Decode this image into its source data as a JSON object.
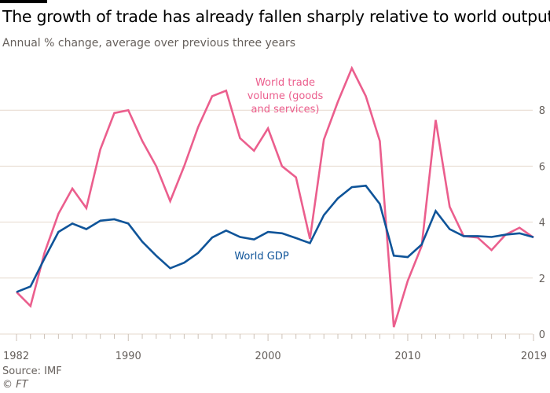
{
  "header": {
    "title": "The growth of trade has already fallen sharply relative to world output",
    "subtitle": "Annual % change, average over previous three years"
  },
  "footer": {
    "source": "Source: IMF",
    "credit": "© FT"
  },
  "colors": {
    "trade": "#eb5e8d",
    "gdp": "#0f5499",
    "grid": "#e6d9ce",
    "axis_text": "#66605c"
  },
  "chart_data": {
    "type": "line",
    "title": "The growth of trade has already fallen sharply relative to world output",
    "subtitle": "Annual % change, average over previous three years",
    "xlabel": "",
    "ylabel": "",
    "xlim": [
      1982,
      2019
    ],
    "ylim": [
      0,
      9.5
    ],
    "yticks": [
      "0",
      "2",
      "4",
      "6",
      "8"
    ],
    "xticks": [
      "1982",
      "1990",
      "2000",
      "2010",
      "2019"
    ],
    "grid": true,
    "y_axis_side": "right",
    "x": [
      1982,
      1983,
      1984,
      1985,
      1986,
      1987,
      1988,
      1989,
      1990,
      1991,
      1992,
      1993,
      1994,
      1995,
      1996,
      1997,
      1998,
      1999,
      2000,
      2001,
      2002,
      2003,
      2004,
      2005,
      2006,
      2007,
      2008,
      2009,
      2010,
      2011,
      2012,
      2013,
      2014,
      2015,
      2016,
      2017,
      2018,
      2019
    ],
    "series": [
      {
        "name": "World trade volume (goods and services)",
        "label_lines": [
          "World trade",
          "volume (goods",
          "and services)"
        ],
        "values": [
          1.5,
          1.0,
          2.9,
          4.3,
          5.2,
          4.5,
          6.6,
          7.9,
          8.0,
          6.9,
          6.0,
          4.75,
          6.0,
          7.4,
          8.5,
          8.7,
          7.0,
          6.55,
          7.35,
          6.0,
          5.6,
          3.4,
          6.95,
          8.3,
          9.5,
          8.5,
          6.9,
          0.25,
          1.9,
          3.15,
          7.65,
          4.55,
          3.5,
          3.45,
          3.0,
          3.55,
          3.8,
          3.45
        ]
      },
      {
        "name": "World GDP",
        "label_lines": [
          "World GDP"
        ],
        "values": [
          1.5,
          1.7,
          2.7,
          3.65,
          3.95,
          3.75,
          4.05,
          4.1,
          3.95,
          3.3,
          2.8,
          2.35,
          2.55,
          2.9,
          3.45,
          3.7,
          3.47,
          3.38,
          3.65,
          3.6,
          3.43,
          3.25,
          4.25,
          4.85,
          5.25,
          5.3,
          4.65,
          2.8,
          2.75,
          3.2,
          4.4,
          3.75,
          3.5,
          3.5,
          3.47,
          3.55,
          3.6,
          3.46
        ]
      }
    ]
  }
}
